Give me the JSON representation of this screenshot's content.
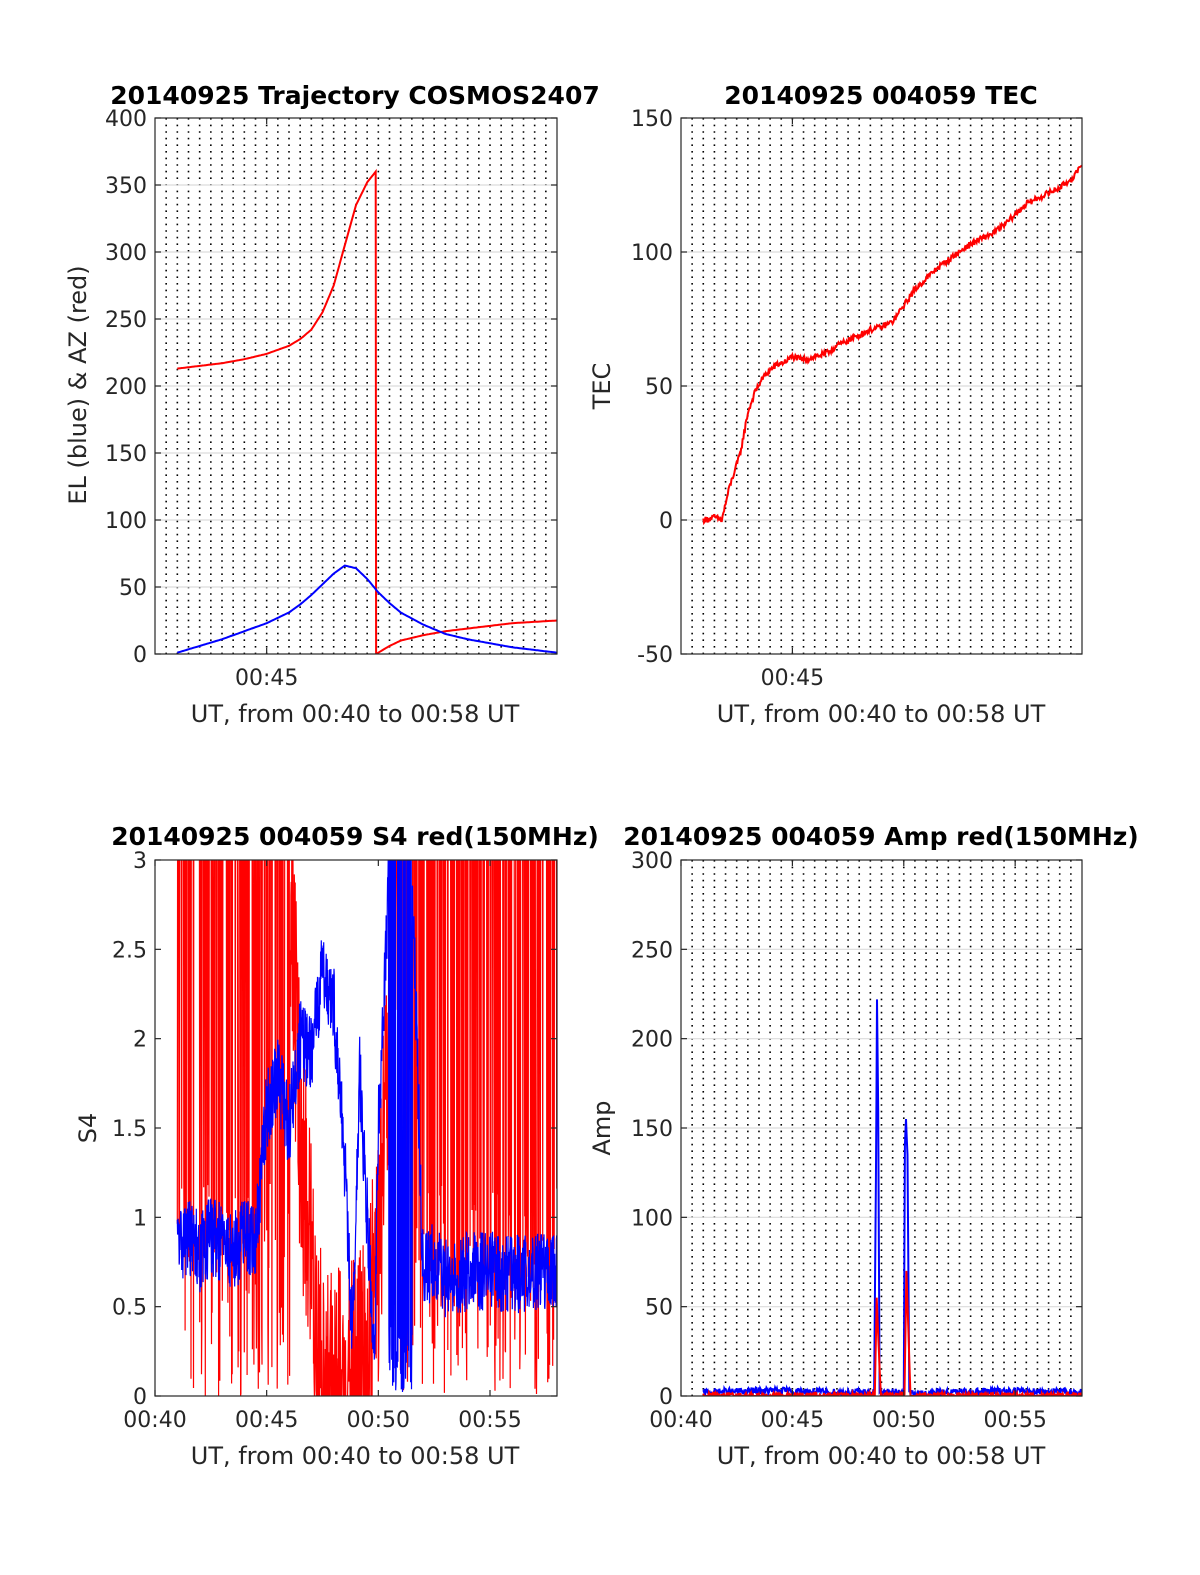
{
  "colors": {
    "az": "#ff0000",
    "el": "#0000ff",
    "tec": "#ff0000",
    "red": "#ff0000",
    "blue": "#0000ff",
    "grid_minor": "#000000"
  },
  "chart_data": [
    {
      "type": "line",
      "title": "20140925 Trajectory COSMOS2407",
      "xlabel": "UT, from 00:40 to 00:58 UT",
      "ylabel": "EL (blue) & AZ (red)",
      "xlim": [
        "00:40",
        "00:58"
      ],
      "ylim": [
        0,
        400
      ],
      "yticks": [
        0,
        50,
        100,
        150,
        200,
        250,
        300,
        350,
        400
      ],
      "xticklabels": [
        {
          "t": "00:45",
          "label": "00:45"
        }
      ],
      "grid": "dotted vertical every 30 s, horizontal at y ticks",
      "series": [
        {
          "color": "az",
          "x": [
            "00:41:00",
            "00:42:00",
            "00:43:00",
            "00:44:00",
            "00:45:00",
            "00:46:00",
            "00:46:30",
            "00:47:00",
            "00:47:30",
            "00:48:00",
            "00:48:30",
            "00:49:00",
            "00:49:30",
            "00:49:53",
            "00:49:54",
            "00:50:30",
            "00:51:00",
            "00:52:00",
            "00:53:00",
            "00:54:00",
            "00:55:00",
            "00:56:00",
            "00:57:00",
            "00:58:00"
          ],
          "values": [
            213,
            215,
            217,
            220,
            224,
            230,
            235,
            242,
            255,
            275,
            305,
            335,
            352,
            360,
            0,
            6,
            10,
            14,
            17,
            19,
            21,
            23,
            24,
            25
          ]
        },
        {
          "color": "el",
          "x": [
            "00:41:00",
            "00:42:00",
            "00:43:00",
            "00:44:00",
            "00:45:00",
            "00:46:00",
            "00:46:30",
            "00:47:00",
            "00:47:30",
            "00:48:00",
            "00:48:30",
            "00:49:00",
            "00:49:30",
            "00:50:00",
            "00:50:30",
            "00:51:00",
            "00:52:00",
            "00:53:00",
            "00:54:00",
            "00:55:00",
            "00:56:00",
            "00:57:00",
            "00:58:00"
          ],
          "values": [
            1,
            6,
            11,
            17,
            23,
            31,
            37,
            44,
            52,
            60,
            66,
            64,
            56,
            46,
            38,
            31,
            22,
            15,
            11,
            8,
            5,
            3,
            1
          ]
        }
      ]
    },
    {
      "type": "line",
      "title": "20140925 004059 TEC",
      "xlabel": "UT, from 00:40 to 00:58 UT",
      "ylabel": "TEC",
      "xlim": [
        "00:40",
        "00:58"
      ],
      "ylim": [
        -50,
        150
      ],
      "yticks": [
        -50,
        0,
        50,
        100,
        150
      ],
      "xticklabels": [
        {
          "t": "00:45",
          "label": "00:45"
        }
      ],
      "grid": "dotted vertical every 30 s, horizontal at y ticks",
      "series": [
        {
          "color": "tec",
          "x": [
            "00:41:00",
            "00:41:30",
            "00:41:50",
            "00:42:10",
            "00:42:40",
            "00:43:00",
            "00:43:20",
            "00:43:40",
            "00:44:00",
            "00:44:20",
            "00:44:40",
            "00:45:00",
            "00:45:20",
            "00:45:40",
            "00:46:00",
            "00:46:30",
            "00:47:00",
            "00:47:30",
            "00:48:00",
            "00:48:30",
            "00:49:00",
            "00:49:30",
            "00:50:00",
            "00:50:30",
            "00:51:00",
            "00:51:30",
            "00:52:00",
            "00:52:30",
            "00:53:00",
            "00:53:30",
            "00:54:00",
            "00:54:30",
            "00:55:00",
            "00:55:30",
            "00:56:00",
            "00:56:30",
            "00:57:00",
            "00:57:30",
            "00:58:00"
          ],
          "values": [
            0,
            1,
            0,
            12,
            25,
            40,
            48,
            53,
            56,
            58,
            59,
            61,
            60,
            60,
            61,
            62,
            65,
            67,
            69,
            71,
            72,
            74,
            80,
            86,
            90,
            94,
            97,
            100,
            103,
            105,
            107,
            110,
            114,
            118,
            120,
            122,
            124,
            127,
            132
          ]
        }
      ]
    },
    {
      "type": "line",
      "title": "20140925 004059 S4 red(150MHz)",
      "xlabel": "UT, from 00:40 to 00:58 UT",
      "ylabel": "S4",
      "xlim": [
        "00:40",
        "00:58"
      ],
      "ylim": [
        0,
        3
      ],
      "yticks": [
        0,
        0.5,
        1,
        1.5,
        2,
        2.5,
        3
      ],
      "xticklabels": [
        {
          "t": "00:40",
          "label": "00:40"
        },
        {
          "t": "00:45",
          "label": "00:45"
        },
        {
          "t": "00:50",
          "label": "00:50"
        },
        {
          "t": "00:55",
          "label": "00:55"
        }
      ],
      "grid": "none",
      "series": [
        {
          "color": "red",
          "x": [
            "00:41:00",
            "00:43:00",
            "00:45:00",
            "00:46:00",
            "00:46:30",
            "00:47:30",
            "00:48:30",
            "00:49:30",
            "00:50:00",
            "00:51:00",
            "00:51:30",
            "00:53:00",
            "00:55:00",
            "00:57:00",
            "00:58:00"
          ],
          "values": [
            3,
            3,
            3,
            3,
            1.5,
            0,
            0,
            0.2,
            0.8,
            3,
            3,
            3,
            3,
            3,
            3
          ]
        },
        {
          "color": "blue",
          "x": [
            "00:41:00",
            "00:41:30",
            "00:42:00",
            "00:42:30",
            "00:43:00",
            "00:43:30",
            "00:44:00",
            "00:44:30",
            "00:45:00",
            "00:45:30",
            "00:46:00",
            "00:46:30",
            "00:47:00",
            "00:47:30",
            "00:48:00",
            "00:48:30",
            "00:48:50",
            "00:49:10",
            "00:49:30",
            "00:49:50",
            "00:50:00",
            "00:50:30",
            "00:51:00",
            "00:51:30",
            "00:52:00",
            "00:52:30",
            "00:53:00",
            "00:54:00",
            "00:55:00",
            "00:56:00",
            "00:57:00",
            "00:58:00"
          ],
          "values": [
            0.85,
            0.9,
            0.8,
            0.9,
            0.85,
            0.8,
            0.9,
            0.85,
            1.6,
            1.8,
            1.5,
            2.0,
            1.9,
            2.4,
            2.2,
            1.3,
            0.3,
            1.8,
            1.0,
            0.25,
            1.5,
            3.0,
            3.0,
            3.0,
            0.7,
            0.75,
            0.65,
            0.7,
            0.7,
            0.68,
            0.7,
            0.7
          ]
        }
      ]
    },
    {
      "type": "line",
      "title": "20140925 004059 Amp red(150MHz)",
      "xlabel": "UT, from 00:40 to 00:58 UT",
      "ylabel": "Amp",
      "xlim": [
        "00:40",
        "00:58"
      ],
      "ylim": [
        0,
        300
      ],
      "yticks": [
        0,
        50,
        100,
        150,
        200,
        250,
        300
      ],
      "xticklabels": [
        {
          "t": "00:40",
          "label": "00:40"
        },
        {
          "t": "00:45",
          "label": "00:45"
        },
        {
          "t": "00:50",
          "label": "00:50"
        },
        {
          "t": "00:55",
          "label": "00:55"
        }
      ],
      "grid": "dotted vertical every 30 s, horizontal at y ticks",
      "series": [
        {
          "color": "blue",
          "x": [
            "00:41:00",
            "00:44:00",
            "00:47:00",
            "00:48:40",
            "00:48:45",
            "00:48:48",
            "00:48:51",
            "00:48:55",
            "00:49:00",
            "00:50:00",
            "00:50:03",
            "00:50:06",
            "00:50:10",
            "00:50:15",
            "00:50:25",
            "00:52:00",
            "00:55:00",
            "00:58:00"
          ],
          "values": [
            2,
            3,
            2,
            2,
            120,
            222,
            160,
            2,
            2,
            2,
            140,
            155,
            135,
            2,
            1,
            2,
            3,
            2
          ]
        },
        {
          "color": "red",
          "x": [
            "00:41:00",
            "00:48:42",
            "00:48:47",
            "00:48:52",
            "00:48:58",
            "00:50:02",
            "00:50:07",
            "00:50:12",
            "00:50:18",
            "00:58:00"
          ],
          "values": [
            0,
            0,
            55,
            30,
            0,
            0,
            70,
            40,
            0,
            0
          ]
        }
      ]
    }
  ]
}
